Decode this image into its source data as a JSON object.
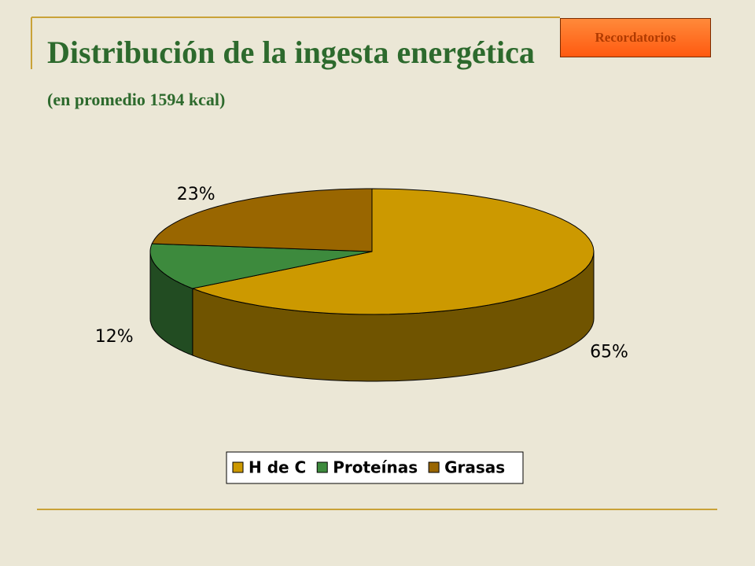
{
  "button": "Recordatorios",
  "chart_data": {
    "type": "pie3d",
    "title": "Distribución de la ingesta energética",
    "subtitle": "(en promedio 1594 kcal)",
    "categories": [
      "H de C",
      "Proteínas",
      "Grasas"
    ],
    "values": [
      65,
      12,
      23
    ],
    "value_labels": [
      "65%",
      "12%",
      "23%"
    ],
    "colors": [
      "#cc9900",
      "#3d8a3d",
      "#996600"
    ],
    "legend": "bottom"
  }
}
